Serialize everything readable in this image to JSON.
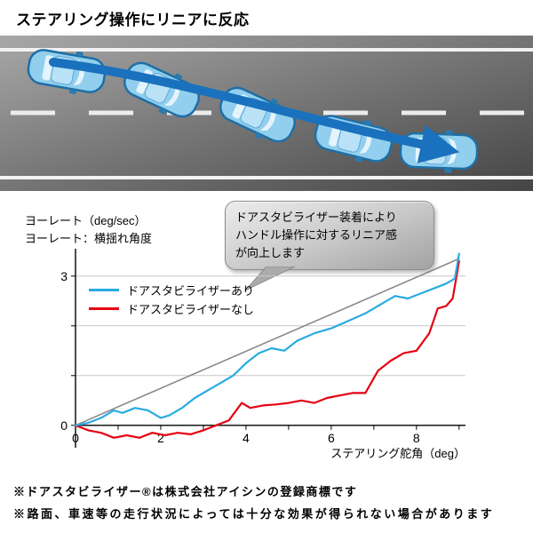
{
  "title": "ステアリング操作にリニアに反応",
  "colors": {
    "series_with": "#29abe2",
    "series_without": "#e60012",
    "reference_line": "#8a8a8a",
    "arrow_blue": "#1a71bd",
    "car_fill": "#92cfee",
    "grid": "#c9c9c9"
  },
  "axis_labels": {
    "y_line1": "ヨーレート（deg/sec）",
    "y_line2": "ヨーレート：横揺れ角度",
    "x_title": "ステアリング舵角（deg）"
  },
  "callout": {
    "lines": [
      "ドアスタビライザー装着により",
      "ハンドル操作に対するリニア感",
      "が向上します"
    ]
  },
  "chart_data": {
    "type": "line",
    "title": "",
    "xlabel": "ステアリング舵角（deg）",
    "ylabel": "ヨーレート（deg/sec）",
    "xlim": [
      0,
      9.15
    ],
    "ylim": [
      -0.45,
      3.55
    ],
    "x_ticks": [
      0,
      2,
      4,
      6,
      8
    ],
    "x_minor_ticks": [
      0,
      1,
      2,
      3,
      4,
      5,
      6,
      7,
      8,
      9
    ],
    "y_ticks_labeled": [
      0,
      3
    ],
    "y_minor_ticks": [
      0,
      1,
      2,
      3
    ],
    "grid_y": [
      1,
      2,
      3
    ],
    "grid": "horizontal-only",
    "legend_position": "upper-left",
    "series": [
      {
        "name": "ドアスタビライザーあり",
        "color": "#29abe2",
        "x": [
          0,
          0.3,
          0.6,
          0.9,
          1.1,
          1.4,
          1.7,
          2.0,
          2.2,
          2.5,
          2.8,
          3.1,
          3.4,
          3.7,
          4.0,
          4.3,
          4.6,
          4.9,
          5.2,
          5.6,
          6.0,
          6.4,
          6.8,
          7.2,
          7.5,
          7.8,
          8.1,
          8.4,
          8.7,
          8.9,
          9.0
        ],
        "y": [
          0,
          0.05,
          0.15,
          0.3,
          0.25,
          0.35,
          0.3,
          0.15,
          0.2,
          0.35,
          0.55,
          0.7,
          0.85,
          1.0,
          1.25,
          1.45,
          1.55,
          1.5,
          1.7,
          1.85,
          1.95,
          2.1,
          2.25,
          2.45,
          2.6,
          2.55,
          2.65,
          2.75,
          2.85,
          2.95,
          3.45
        ]
      },
      {
        "name": "ドアスタビライザーなし",
        "color": "#e60012",
        "x": [
          0,
          0.3,
          0.6,
          0.9,
          1.2,
          1.5,
          1.8,
          2.1,
          2.4,
          2.7,
          3.0,
          3.3,
          3.6,
          3.9,
          4.1,
          4.4,
          4.7,
          5.0,
          5.3,
          5.6,
          5.9,
          6.2,
          6.5,
          6.8,
          7.1,
          7.4,
          7.7,
          8.0,
          8.3,
          8.5,
          8.7,
          8.85,
          9.0
        ],
        "y": [
          0,
          -0.1,
          -0.15,
          -0.25,
          -0.2,
          -0.25,
          -0.15,
          -0.2,
          -0.15,
          -0.18,
          -0.1,
          0.0,
          0.1,
          0.45,
          0.35,
          0.4,
          0.42,
          0.45,
          0.5,
          0.45,
          0.55,
          0.6,
          0.65,
          0.65,
          1.1,
          1.3,
          1.45,
          1.5,
          1.85,
          2.35,
          2.4,
          2.55,
          3.3
        ]
      },
      {
        "name": "reference",
        "color": "#8a8a8a",
        "x": [
          0,
          9.0
        ],
        "y": [
          0,
          3.35
        ]
      }
    ]
  },
  "footnotes": [
    "※ドアスタビライザー®は株式会社アイシンの登録商標です",
    "※路面、車速等の走行状況によっては十分な効果が得られない場合があります"
  ]
}
